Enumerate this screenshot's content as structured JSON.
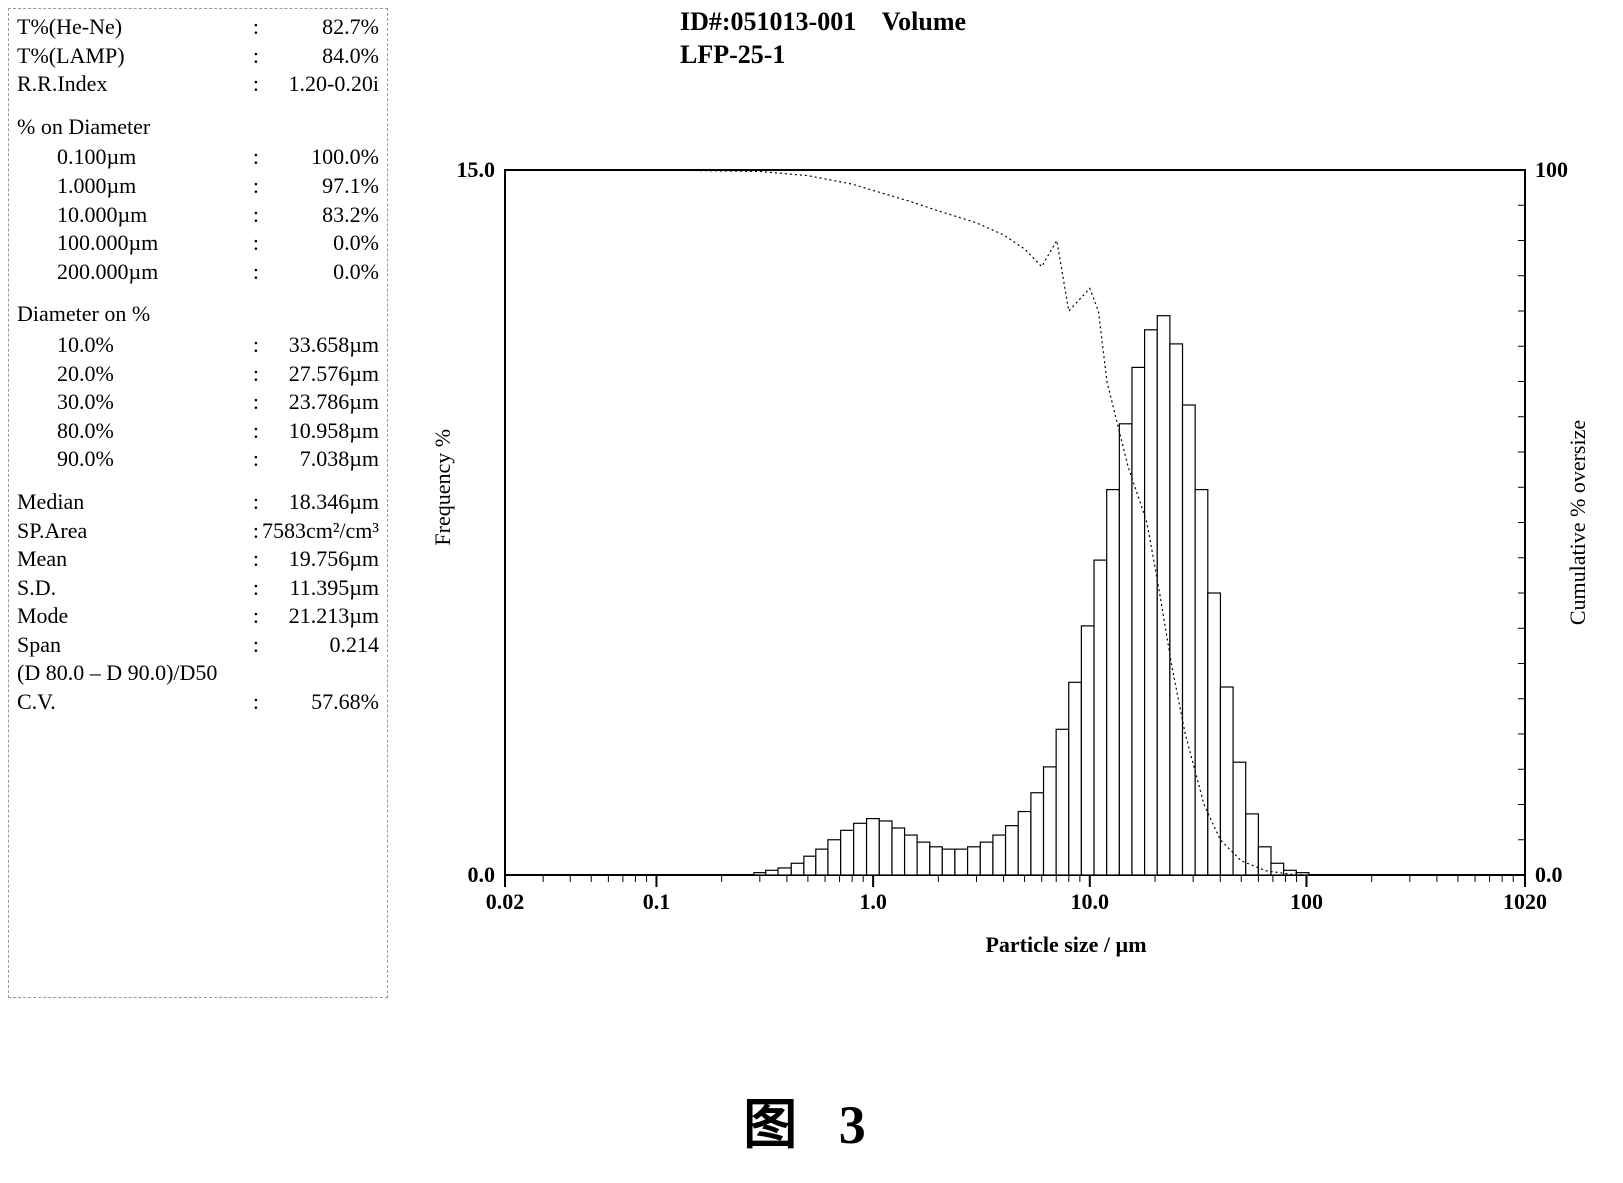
{
  "header": {
    "id_label": "ID#:051013-001",
    "mode": "Volume",
    "sample": "LFP-25-1"
  },
  "left_panel": {
    "top_params": [
      {
        "k": "T%(He-Ne)",
        "sep": ":",
        "v": "82.7%"
      },
      {
        "k": "T%(LAMP)",
        "sep": ":",
        "v": "84.0%"
      },
      {
        "k": "R.R.Index",
        "sep": ":",
        "v": "1.20-0.20i"
      }
    ],
    "pct_on_diameter_title": "% on Diameter",
    "pct_on_diameter": [
      {
        "k": "0.100µm",
        "sep": ":",
        "v": "100.0%"
      },
      {
        "k": "1.000µm",
        "sep": ":",
        "v": "97.1%"
      },
      {
        "k": "10.000µm",
        "sep": ":",
        "v": "83.2%"
      },
      {
        "k": "100.000µm",
        "sep": ":",
        "v": "0.0%"
      },
      {
        "k": "200.000µm",
        "sep": ":",
        "v": "0.0%"
      }
    ],
    "diameter_on_pct_title": "Diameter on %",
    "diameter_on_pct": [
      {
        "k": "10.0%",
        "sep": ":",
        "v": "33.658µm"
      },
      {
        "k": "20.0%",
        "sep": ":",
        "v": "27.576µm"
      },
      {
        "k": "30.0%",
        "sep": ":",
        "v": "23.786µm"
      },
      {
        "k": "80.0%",
        "sep": ":",
        "v": "10.958µm"
      },
      {
        "k": "90.0%",
        "sep": ":",
        "v": "7.038µm"
      }
    ],
    "stats": [
      {
        "k": "Median",
        "sep": ":",
        "v": "18.346µm"
      },
      {
        "k": "SP.Area",
        "sep": ":",
        "v": "7583cm²/cm³"
      },
      {
        "k": "Mean",
        "sep": ":",
        "v": "19.756µm"
      },
      {
        "k": "S.D.",
        "sep": ":",
        "v": "11.395µm"
      },
      {
        "k": "Mode",
        "sep": ":",
        "v": "21.213µm"
      },
      {
        "k": "Span",
        "sep": ":",
        "v": "0.214"
      }
    ],
    "span_note": "(D 80.0 – D 90.0)/D50",
    "cv": {
      "k": "C.V.",
      "sep": ":",
      "v": "57.68%"
    }
  },
  "chart": {
    "type": "histogram+cumulative",
    "x_label": "Particle size / µm",
    "y_left_label": "Frequency %",
    "y_right_label": "Cumulative % oversize",
    "x_scale": "log",
    "x_min": 0.02,
    "x_max": 1020,
    "x_ticks": [
      0.02,
      0.1,
      1.0,
      10.0,
      100,
      1020
    ],
    "x_tick_labels": [
      "0.02",
      "0.1",
      "1.0",
      "10.0",
      "100",
      "1020"
    ],
    "y_left_min": 0.0,
    "y_left_max": 15.0,
    "y_left_ticks": [
      0.0,
      15.0
    ],
    "y_left_tick_labels": [
      "0.0",
      "15.0"
    ],
    "y_right_min": 0.0,
    "y_right_max": 100,
    "y_right_ticks": [
      0.0,
      100
    ],
    "y_right_tick_labels": [
      "0.0",
      "100"
    ],
    "bar_fill": "#ffffff",
    "bar_stroke": "#000000",
    "bar_stroke_width": 1.2,
    "curve_stroke": "#000000",
    "curve_stroke_width": 1.2,
    "curve_dash": "2,3",
    "axis_stroke": "#000000",
    "axis_stroke_width": 2,
    "tick_font_size": 22,
    "label_font_size": 22,
    "background": "#ffffff",
    "bars": [
      {
        "x": 0.3,
        "f": 0.05
      },
      {
        "x": 0.34,
        "f": 0.1
      },
      {
        "x": 0.39,
        "f": 0.15
      },
      {
        "x": 0.45,
        "f": 0.25
      },
      {
        "x": 0.51,
        "f": 0.4
      },
      {
        "x": 0.58,
        "f": 0.55
      },
      {
        "x": 0.66,
        "f": 0.75
      },
      {
        "x": 0.76,
        "f": 0.95
      },
      {
        "x": 0.87,
        "f": 1.1
      },
      {
        "x": 1.0,
        "f": 1.2
      },
      {
        "x": 1.14,
        "f": 1.15
      },
      {
        "x": 1.31,
        "f": 1.0
      },
      {
        "x": 1.49,
        "f": 0.85
      },
      {
        "x": 1.71,
        "f": 0.7
      },
      {
        "x": 1.95,
        "f": 0.6
      },
      {
        "x": 2.23,
        "f": 0.55
      },
      {
        "x": 2.55,
        "f": 0.55
      },
      {
        "x": 2.92,
        "f": 0.6
      },
      {
        "x": 3.34,
        "f": 0.7
      },
      {
        "x": 3.82,
        "f": 0.85
      },
      {
        "x": 4.37,
        "f": 1.05
      },
      {
        "x": 5.0,
        "f": 1.35
      },
      {
        "x": 5.72,
        "f": 1.75
      },
      {
        "x": 6.54,
        "f": 2.3
      },
      {
        "x": 7.48,
        "f": 3.1
      },
      {
        "x": 8.55,
        "f": 4.1
      },
      {
        "x": 9.78,
        "f": 5.3
      },
      {
        "x": 11.19,
        "f": 6.7
      },
      {
        "x": 12.8,
        "f": 8.2
      },
      {
        "x": 14.64,
        "f": 9.6
      },
      {
        "x": 16.74,
        "f": 10.8
      },
      {
        "x": 19.15,
        "f": 11.6
      },
      {
        "x": 21.9,
        "f": 11.9
      },
      {
        "x": 25.05,
        "f": 11.3
      },
      {
        "x": 28.65,
        "f": 10.0
      },
      {
        "x": 32.77,
        "f": 8.2
      },
      {
        "x": 37.48,
        "f": 6.0
      },
      {
        "x": 42.87,
        "f": 4.0
      },
      {
        "x": 49.03,
        "f": 2.4
      },
      {
        "x": 56.08,
        "f": 1.3
      },
      {
        "x": 64.15,
        "f": 0.6
      },
      {
        "x": 73.37,
        "f": 0.25
      },
      {
        "x": 83.92,
        "f": 0.1
      },
      {
        "x": 95.98,
        "f": 0.05
      }
    ],
    "cumulative": [
      {
        "x": 0.02,
        "c": 100.0
      },
      {
        "x": 0.1,
        "c": 100.0
      },
      {
        "x": 0.3,
        "c": 99.8
      },
      {
        "x": 0.5,
        "c": 99.2
      },
      {
        "x": 0.8,
        "c": 98.0
      },
      {
        "x": 1.0,
        "c": 97.1
      },
      {
        "x": 1.5,
        "c": 95.5
      },
      {
        "x": 2.0,
        "c": 94.2
      },
      {
        "x": 3.0,
        "c": 92.5
      },
      {
        "x": 4.0,
        "c": 90.8
      },
      {
        "x": 5.0,
        "c": 88.8
      },
      {
        "x": 6.0,
        "c": 86.3
      },
      {
        "x": 7.04,
        "c": 90.0
      },
      {
        "x": 8.0,
        "c": 80.0
      },
      {
        "x": 10.0,
        "c": 83.2
      },
      {
        "x": 10.96,
        "c": 80.0
      },
      {
        "x": 12.0,
        "c": 70.0
      },
      {
        "x": 15.0,
        "c": 58.0
      },
      {
        "x": 18.35,
        "c": 50.0
      },
      {
        "x": 21.0,
        "c": 40.0
      },
      {
        "x": 23.79,
        "c": 30.0
      },
      {
        "x": 27.58,
        "c": 20.0
      },
      {
        "x": 33.66,
        "c": 10.0
      },
      {
        "x": 40.0,
        "c": 5.0
      },
      {
        "x": 50.0,
        "c": 2.0
      },
      {
        "x": 65.0,
        "c": 0.6
      },
      {
        "x": 85.0,
        "c": 0.1
      },
      {
        "x": 100.0,
        "c": 0.0
      },
      {
        "x": 1020.0,
        "c": 0.0
      }
    ]
  },
  "figure_caption": "图 3"
}
